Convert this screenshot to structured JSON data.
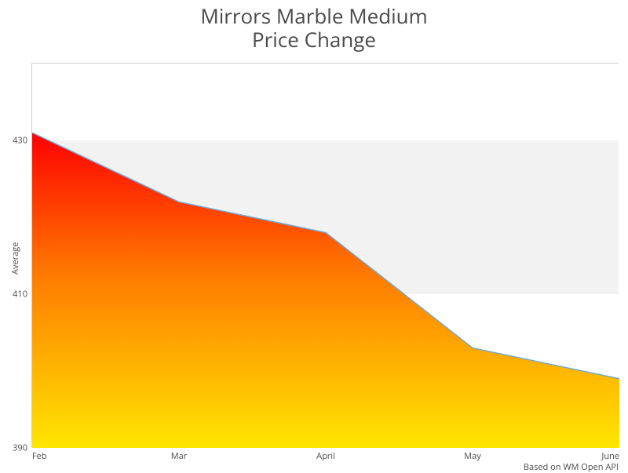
{
  "chart": {
    "type": "area",
    "title_line1": "Mirrors Marble Medium",
    "title_line2": "Price Change",
    "title_fontsize": 26,
    "title_color": "#4a4a4a",
    "ylabel": "Average",
    "credit": "Based on WM Open API",
    "background_color": "#ffffff",
    "plot_border_color": "#d0d0d0",
    "band_color": "#f2f2f2",
    "line_color": "#6fa8d6",
    "line_width": 1.5,
    "gradient_top": "#ff0000",
    "gradient_mid": "#ff7a00",
    "gradient_bottom": "#ffe600",
    "tick_color": "#4a4a4a",
    "tick_fontsize": 11,
    "x_categories": [
      "Feb",
      "Mar",
      "April",
      "May",
      "June"
    ],
    "y_values": [
      431,
      422,
      418,
      403,
      399
    ],
    "ylim": [
      390,
      440
    ],
    "yticks": [
      390,
      410,
      430
    ],
    "band_ranges": [
      [
        410,
        430
      ]
    ]
  }
}
